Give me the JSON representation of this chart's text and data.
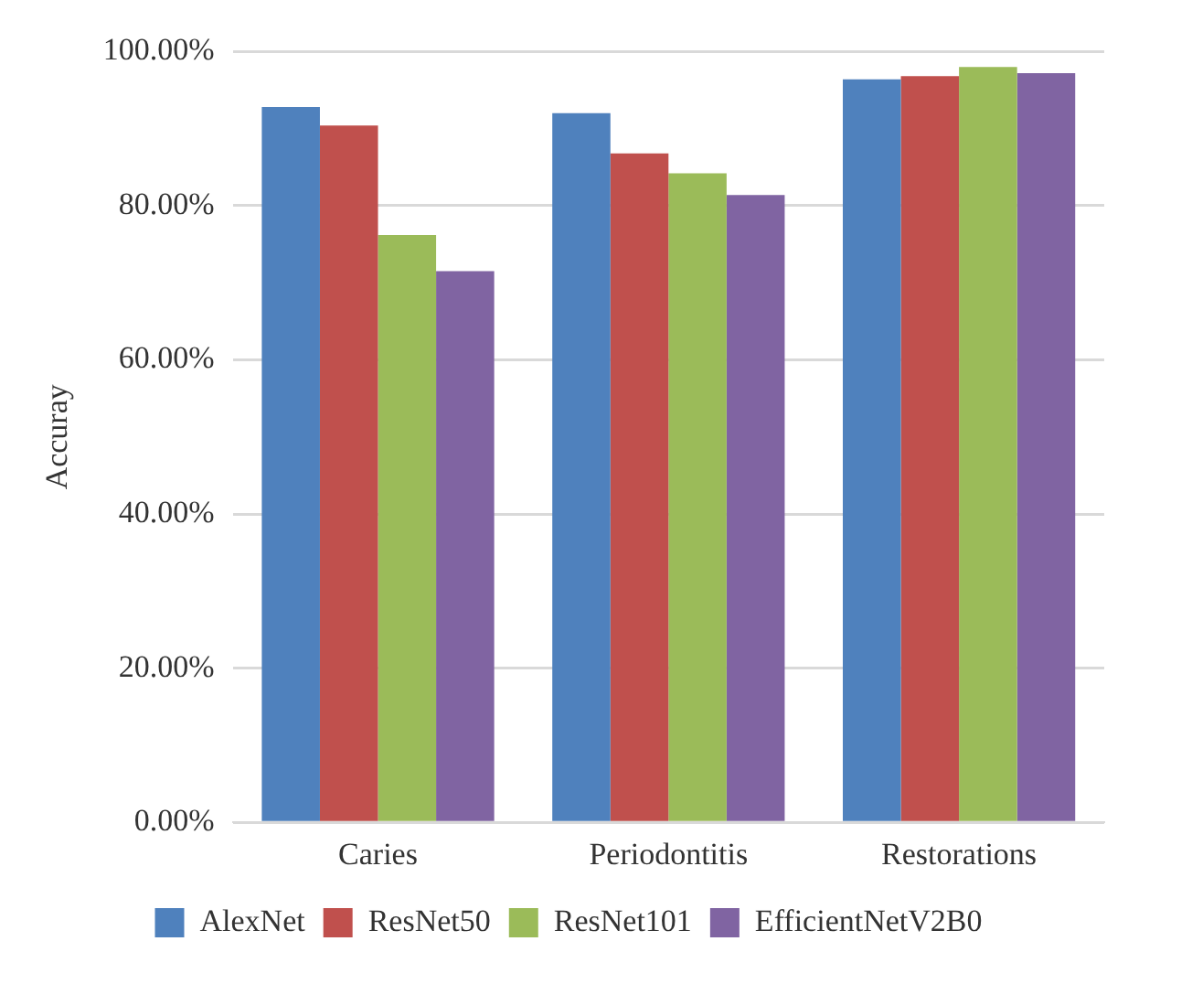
{
  "chart_data": {
    "type": "bar",
    "ylabel": "Accuray",
    "categories": [
      "Caries",
      "Periodontitis",
      "Restorations"
    ],
    "series": [
      {
        "name": "AlexNet",
        "color": "#4f81bd",
        "values": [
          92.8,
          92.0,
          96.4
        ]
      },
      {
        "name": "ResNet50",
        "color": "#c0504d",
        "values": [
          90.4,
          86.8,
          96.8
        ]
      },
      {
        "name": "ResNet101",
        "color": "#9bbb59",
        "values": [
          76.2,
          84.2,
          98.0
        ]
      },
      {
        "name": "EfficientNetV2B0",
        "color": "#8064a2",
        "values": [
          71.5,
          81.4,
          97.2
        ]
      }
    ],
    "ylim": [
      0,
      100
    ],
    "yticks": [
      {
        "value": 0,
        "label": "0.00%"
      },
      {
        "value": 20,
        "label": "20.00%"
      },
      {
        "value": 40,
        "label": "40.00%"
      },
      {
        "value": 60,
        "label": "60.00%"
      },
      {
        "value": 80,
        "label": "80.00%"
      },
      {
        "value": 100,
        "label": "100.00%"
      }
    ],
    "grid": "y",
    "legend": "bottom"
  }
}
